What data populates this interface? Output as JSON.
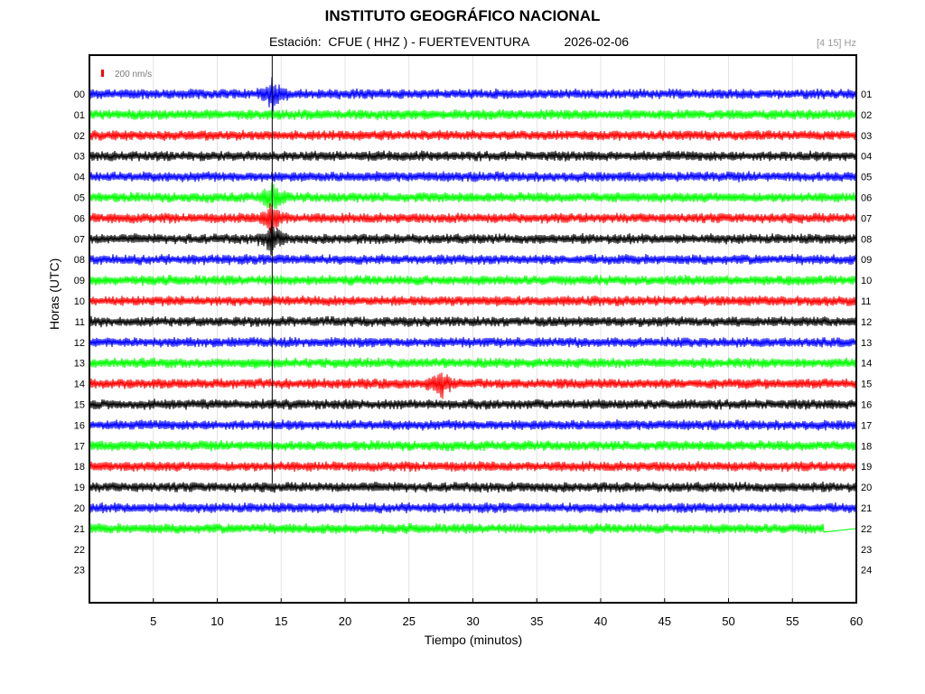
{
  "header": {
    "title": "INSTITUTO GEOGRÁFICO NACIONAL",
    "subtitle": "Estación:  CFUE ( HHZ ) - FUERTEVENTURA          2026-02-06",
    "filter": "[4 15] Hz"
  },
  "scale_label": "200 nm/s",
  "colors": {
    "blue": "#0000ff",
    "green": "#00ff00",
    "red": "#ff0000",
    "black": "#000000",
    "scale_bar": "#ff0000"
  },
  "chart_data": {
    "type": "line",
    "title": "INSTITUTO GEOGRÁFICO NACIONAL",
    "xlabel": "Tiempo (minutos)",
    "ylabel": "Horas (UTC)",
    "xlim": [
      0,
      60
    ],
    "x_ticks": [
      "5",
      "10",
      "15",
      "20",
      "25",
      "30",
      "35",
      "40",
      "45",
      "50",
      "55",
      "60"
    ],
    "left_hours": [
      "00",
      "01",
      "02",
      "03",
      "04",
      "05",
      "06",
      "07",
      "08",
      "09",
      "10",
      "11",
      "12",
      "13",
      "14",
      "15",
      "16",
      "17",
      "18",
      "19",
      "20",
      "21",
      "22",
      "23"
    ],
    "right_hours": [
      "01",
      "02",
      "03",
      "04",
      "05",
      "06",
      "07",
      "08",
      "09",
      "10",
      "11",
      "12",
      "13",
      "14",
      "15",
      "16",
      "17",
      "18",
      "19",
      "20",
      "21",
      "22",
      "23",
      "24"
    ],
    "color_cycle": [
      "blue",
      "green",
      "red",
      "black"
    ],
    "grid": true,
    "traces_recorded_hours": 22,
    "last_trace_end_minute": 57.5,
    "events": [
      {
        "hour": 0,
        "minute": 14.3,
        "note": "large spike"
      },
      {
        "hour": 5,
        "minute": 14.3
      },
      {
        "hour": 6,
        "minute": 14.3
      },
      {
        "hour": 7,
        "minute": 14.3
      },
      {
        "hour": 14,
        "minute": 27.5
      }
    ]
  }
}
